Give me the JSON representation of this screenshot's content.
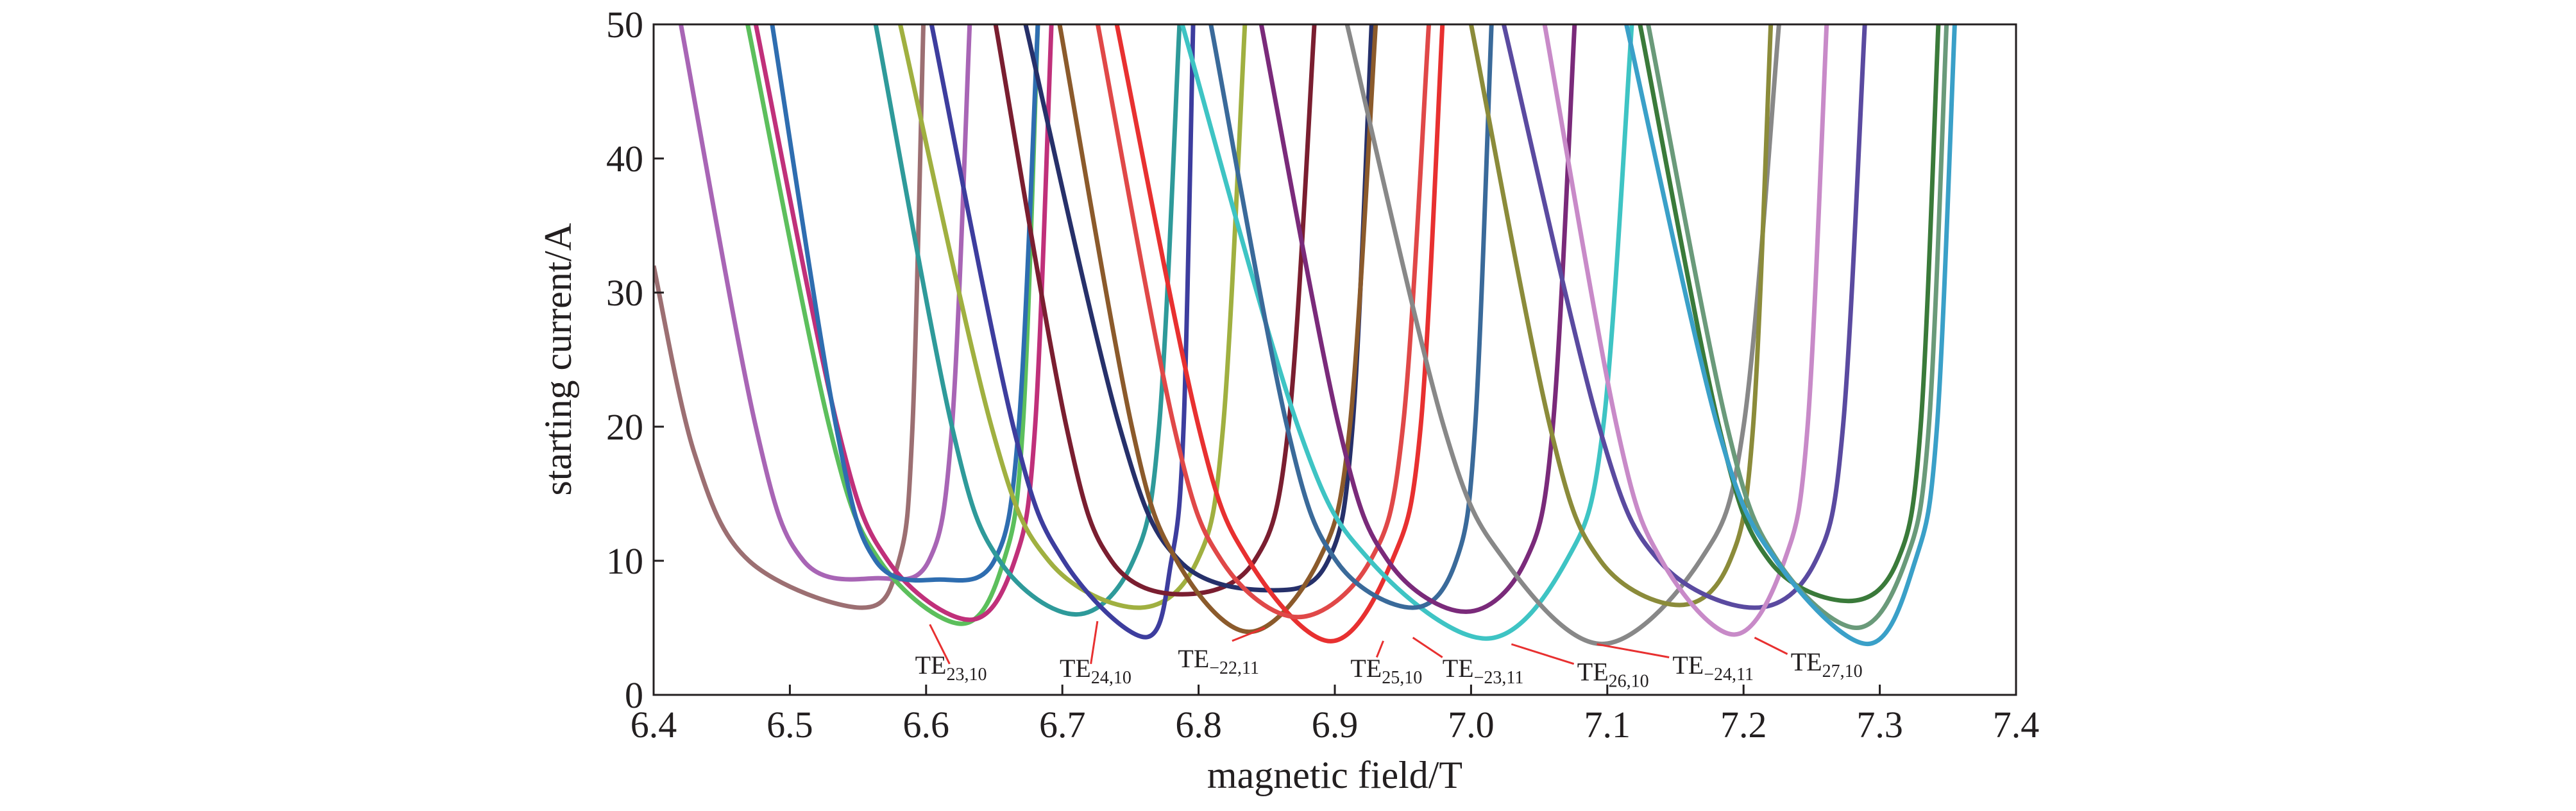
{
  "chart_data": {
    "type": "line",
    "xlabel": "magnetic field/T",
    "ylabel": "starting current/A",
    "xlim": [
      6.4,
      7.4
    ],
    "xticks": [
      6.4,
      6.5,
      6.6,
      6.7,
      6.8,
      6.9,
      {
        "value": 7,
        "label": "7.0"
      },
      7.1,
      7.2,
      7.3,
      7.4
    ],
    "ylim": [
      0,
      50
    ],
    "yticks": [
      0,
      10,
      20,
      30,
      40,
      50
    ],
    "series": [
      {
        "color": "#9c6f72",
        "x": [
          6.4,
          6.43,
          6.47,
          6.553,
          6.58,
          6.59,
          6.598
        ],
        "values": [
          32,
          18,
          10,
          6.5,
          10,
          20,
          50
        ]
      },
      {
        "color": "#a865b5",
        "x": [
          6.42,
          6.475,
          6.51,
          6.565,
          6.602,
          6.619,
          6.632
        ],
        "values": [
          50,
          20,
          10,
          8.7,
          10,
          20,
          50
        ]
      },
      {
        "color": "#5cbf5c",
        "x": [
          6.469,
          6.529,
          6.566,
          6.626,
          6.657,
          6.671,
          6.682
        ],
        "values": [
          50,
          20,
          10,
          5.3,
          10,
          20,
          50
        ]
      },
      {
        "color": "#c0307a",
        "x": [
          6.475,
          6.535,
          6.572,
          6.632,
          6.665,
          6.68,
          6.692
        ],
        "values": [
          50,
          20,
          10,
          5.6,
          10,
          20,
          50
        ]
      },
      {
        "color": "#2e6db0",
        "x": [
          6.487,
          6.534,
          6.563,
          6.61,
          6.65,
          6.668,
          6.682
        ],
        "values": [
          50,
          20,
          10,
          8.6,
          10,
          20,
          50
        ]
      },
      {
        "color": "#2e9a9a",
        "x": [
          6.563,
          6.619,
          6.654,
          6.71,
          6.752,
          6.771,
          6.786
        ],
        "values": [
          50,
          20,
          10,
          6,
          10,
          20,
          50
        ]
      },
      {
        "color": "#a0b040",
        "x": [
          6.581,
          6.648,
          6.69,
          6.756,
          6.799,
          6.818,
          6.834
        ],
        "values": [
          50,
          20,
          10,
          6.5,
          10,
          20,
          50
        ]
      },
      {
        "color": "#3d3d9e",
        "x": [
          6.604,
          6.664,
          6.701,
          6.761,
          6.78,
          6.789,
          6.796
        ],
        "values": [
          50,
          20,
          10,
          4.3,
          10,
          20,
          50
        ]
      },
      {
        "color": "#7a1e30",
        "x": [
          6.651,
          6.703,
          6.736,
          6.788,
          6.841,
          6.866,
          6.885
        ],
        "values": [
          50,
          20,
          10,
          7.5,
          10,
          20,
          50
        ]
      },
      {
        "color": "#26306a",
        "x": [
          6.673,
          6.742,
          6.786,
          6.855,
          6.895,
          6.913,
          6.927
        ],
        "values": [
          50,
          20,
          10,
          7.8,
          10,
          20,
          50
        ]
      },
      {
        "color": "#8b5a2b",
        "x": [
          6.698,
          6.751,
          6.784,
          6.837,
          6.888,
          6.911,
          6.93
        ],
        "values": [
          50,
          20,
          10,
          4.7,
          10,
          20,
          50
        ]
      },
      {
        "color": "#e83030",
        "x": [
          6.74,
          6.8,
          6.837,
          6.897,
          6.942,
          6.963,
          6.979
        ],
        "values": [
          50,
          20,
          10,
          4,
          10,
          20,
          50
        ]
      },
      {
        "color": "#e04848",
        "x": [
          6.726,
          6.782,
          6.817,
          6.873,
          6.926,
          6.95,
          6.969
        ],
        "values": [
          50,
          20,
          10,
          5.8,
          10,
          20,
          50
        ]
      },
      {
        "color": "#3ec4c4",
        "x": [
          6.788,
          6.873,
          6.926,
          7.011,
          7.07,
          7.097,
          7.118
        ],
        "values": [
          50,
          20,
          10,
          4.2,
          10,
          20,
          50
        ]
      },
      {
        "color": "#3a6a9a",
        "x": [
          6.809,
          6.865,
          6.901,
          6.957,
          6.989,
          7.003,
          7.015
        ],
        "values": [
          50,
          20,
          10,
          6.5,
          10,
          20,
          50
        ]
      },
      {
        "color": "#7a2a7a",
        "x": [
          6.846,
          6.903,
          6.939,
          6.996,
          7.04,
          7.06,
          7.076
        ],
        "values": [
          50,
          20,
          10,
          6.2,
          10,
          20,
          50
        ]
      },
      {
        "color": "#888888",
        "x": [
          6.909,
          6.98,
          7.025,
          7.096,
          7.168,
          7.2,
          7.226
        ],
        "values": [
          50,
          20,
          10,
          3.8,
          10,
          20,
          50
        ]
      },
      {
        "color": "#8b8b3a",
        "x": [
          7.0,
          7.058,
          7.095,
          7.153,
          7.19,
          7.207,
          7.22
        ],
        "values": [
          50,
          20,
          10,
          6.7,
          10,
          20,
          50
        ]
      },
      {
        "color": "#5a4aa0",
        "x": [
          7.024,
          7.094,
          7.138,
          7.208,
          7.253,
          7.273,
          7.289
        ],
        "values": [
          50,
          20,
          10,
          6.5,
          10,
          20,
          50
        ]
      },
      {
        "color": "#c88ac8",
        "x": [
          7.054,
          7.107,
          7.14,
          7.193,
          7.23,
          7.247,
          7.261
        ],
        "values": [
          50,
          20,
          10,
          4.5,
          10,
          20,
          50
        ]
      },
      {
        "color": "#3a7a3a",
        "x": [
          7.124,
          7.182,
          7.219,
          7.277,
          7.313,
          7.33,
          7.343
        ],
        "values": [
          50,
          20,
          10,
          7,
          10,
          20,
          50
        ]
      },
      {
        "color": "#6a9a7a",
        "x": [
          7.13,
          7.188,
          7.225,
          7.283,
          7.319,
          7.336,
          7.349
        ],
        "values": [
          50,
          20,
          10,
          5,
          10,
          20,
          50
        ]
      },
      {
        "color": "#3aa0c8",
        "x": [
          7.114,
          7.181,
          7.224,
          7.291,
          7.326,
          7.342,
          7.355
        ],
        "values": [
          50,
          20,
          10,
          3.8,
          10,
          20,
          50
        ]
      }
    ],
    "annotations": [
      {
        "text": "TE",
        "subscript": "23,10"
      },
      {
        "text": "TE",
        "subscript": "24,10"
      },
      {
        "text": "TE",
        "subscript": "−22,11"
      },
      {
        "text": "TE",
        "subscript": "25,10"
      },
      {
        "text": "TE",
        "subscript": "−23,11"
      },
      {
        "text": "TE",
        "subscript": "26,10"
      },
      {
        "text": "TE",
        "subscript": "−24,11"
      },
      {
        "text": "TE",
        "subscript": "27,10"
      }
    ]
  }
}
